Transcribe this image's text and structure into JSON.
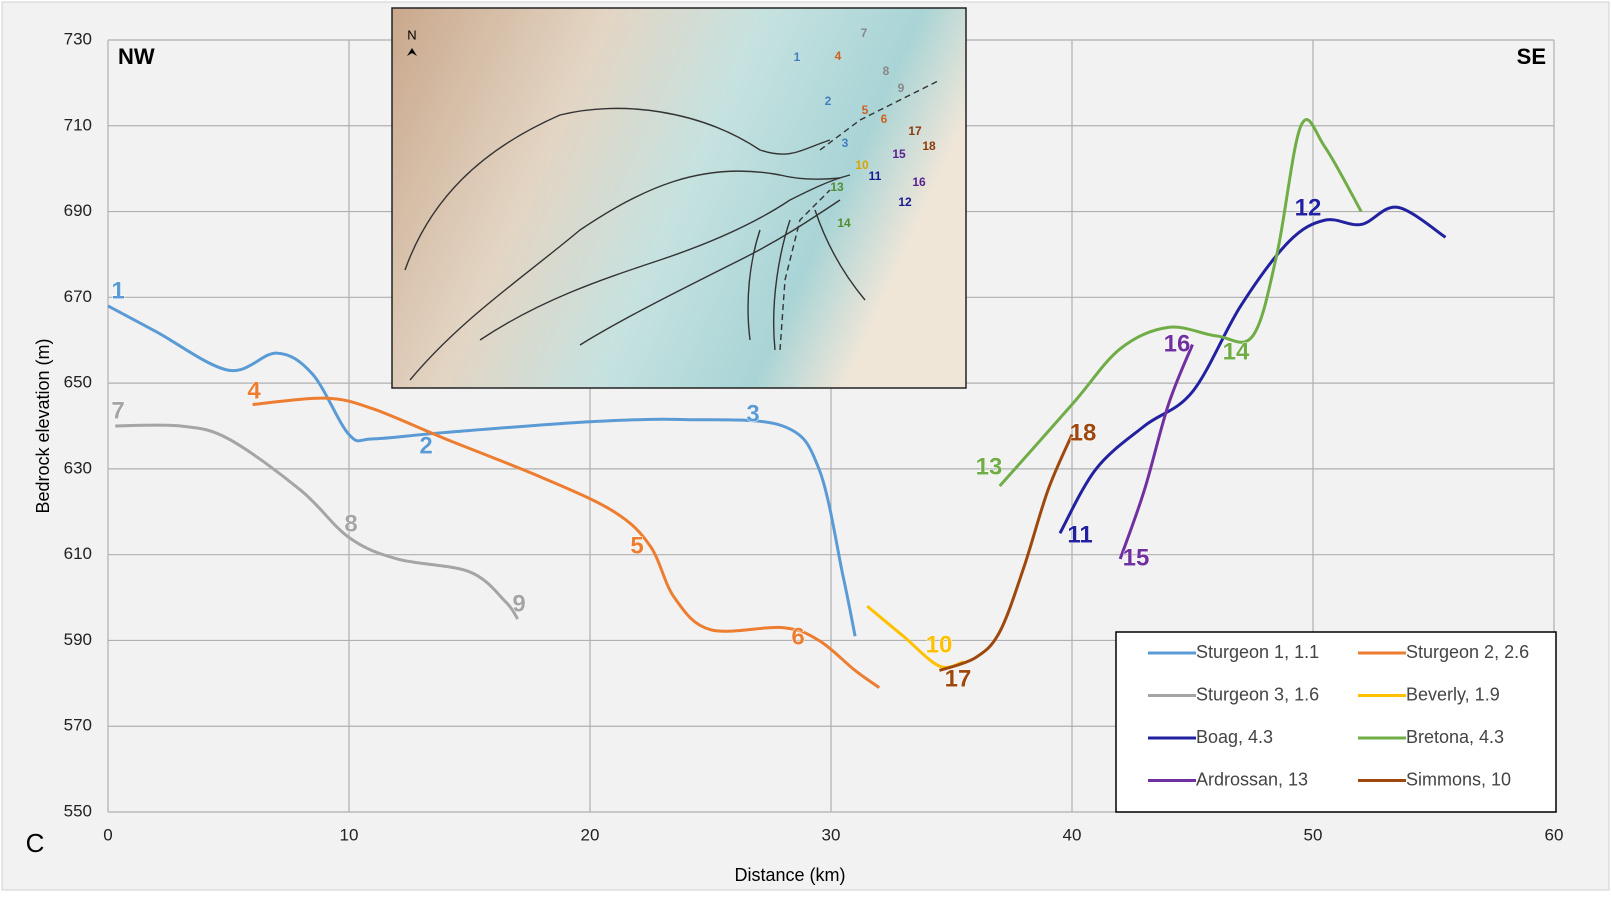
{
  "chart_data": {
    "type": "line",
    "y_label": "Bedrock elevation (m)",
    "x_label": "Distance (km)",
    "corner_left": "NW",
    "corner_right": "SE",
    "panel_label": "C",
    "xlim": [
      0,
      60
    ],
    "xticks": [
      0,
      10,
      20,
      30,
      40,
      50,
      60
    ],
    "ylim": [
      550,
      730
    ],
    "yticks": [
      550,
      570,
      590,
      610,
      630,
      650,
      670,
      690,
      710,
      730
    ],
    "grid": true,
    "legend": "lower right",
    "series": [
      {
        "name": "Sturgeon 1, 1.1",
        "color": "#5b9bd5",
        "x": [
          0,
          2,
          5,
          7,
          8.5,
          10,
          11,
          14,
          20,
          24,
          28,
          29.5,
          30.5,
          31
        ],
        "values": [
          668,
          662,
          653,
          657,
          652,
          638,
          637,
          638.5,
          641,
          641.5,
          640,
          630,
          605,
          591
        ]
      },
      {
        "name": "Sturgeon 2, 2.6",
        "color": "#ed7d31",
        "x": [
          6,
          9,
          11,
          14,
          18,
          21,
          22.5,
          23.5,
          25,
          28,
          29.5,
          31,
          32
        ],
        "values": [
          645,
          646.5,
          644,
          637,
          628,
          620,
          612,
          600,
          592.5,
          593,
          590,
          583,
          579
        ]
      },
      {
        "name": "Sturgeon 3, 1.6",
        "color": "#a5a5a5",
        "x": [
          0.3,
          3,
          5,
          8,
          10,
          12,
          15,
          16.5,
          17
        ],
        "values": [
          640,
          640,
          637,
          625,
          614,
          609,
          606,
          599,
          595
        ]
      },
      {
        "name": "Beverly, 1.9",
        "color": "#ffc000",
        "x": [
          31.5,
          33,
          34.5,
          35.5
        ],
        "values": [
          598,
          591,
          584,
          585
        ]
      },
      {
        "name": "Boag, 4.3",
        "color": "#2222a0",
        "x": [
          39.5,
          41,
          43,
          45,
          47,
          49,
          50.5,
          52,
          53.5,
          55.5
        ],
        "values": [
          615,
          630,
          640,
          648,
          668,
          683,
          688,
          687,
          691,
          684
        ]
      },
      {
        "name": "Bretona, 4.3",
        "color": "#70ad47",
        "x": [
          37,
          40,
          42,
          44,
          46,
          47.5,
          48.5,
          49.5,
          50.5,
          52
        ],
        "values": [
          626,
          645,
          658,
          663,
          661,
          661,
          680,
          710,
          705,
          690
        ]
      },
      {
        "name": "Ardrossan, 13",
        "color": "#7030a0",
        "x": [
          42,
          43,
          44,
          45
        ],
        "values": [
          609,
          625,
          645,
          659
        ]
      },
      {
        "name": "Simmons, 10",
        "color": "#9e480e",
        "x": [
          34.5,
          36,
          37,
          38,
          39,
          40
        ],
        "values": [
          583,
          586,
          592,
          607,
          625,
          638
        ]
      }
    ],
    "annotations": [
      "1",
      "2",
      "3",
      "4",
      "5",
      "6",
      "7",
      "8",
      "9",
      "10",
      "11",
      "12",
      "13",
      "14",
      "15",
      "16",
      "17",
      "18"
    ]
  },
  "inset": {
    "north": "N",
    "labels": [
      "1",
      "2",
      "3",
      "4",
      "5",
      "6",
      "7",
      "8",
      "9",
      "10",
      "11",
      "12",
      "13",
      "14",
      "15",
      "16",
      "17",
      "18"
    ]
  }
}
